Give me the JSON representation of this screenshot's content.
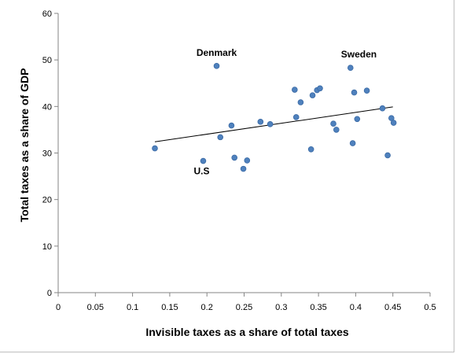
{
  "chart_data": {
    "type": "scatter",
    "title": "",
    "xlabel": "Invisible taxes as a share of total taxes",
    "ylabel": "Total taxes as a share of GDP",
    "xlim": [
      0,
      0.5
    ],
    "ylim": [
      0,
      60
    ],
    "xticks": [
      "0",
      "0.05",
      "0.1",
      "0.15",
      "0.2",
      "0.25",
      "0.3",
      "0.35",
      "0.4",
      "0.45",
      "0.5"
    ],
    "yticks": [
      "0",
      "10",
      "20",
      "30",
      "40",
      "50",
      "60"
    ],
    "grid": false,
    "legend": "none",
    "marker_color": "#4f81bd",
    "trendline": {
      "x": [
        0.13,
        0.45
      ],
      "y": [
        32.4,
        39.9
      ],
      "color": "#000000"
    },
    "points": [
      {
        "x": 0.13,
        "y": 31.0
      },
      {
        "x": 0.195,
        "y": 28.3
      },
      {
        "x": 0.213,
        "y": 48.7
      },
      {
        "x": 0.218,
        "y": 33.4
      },
      {
        "x": 0.233,
        "y": 35.9
      },
      {
        "x": 0.237,
        "y": 29.0
      },
      {
        "x": 0.249,
        "y": 26.6
      },
      {
        "x": 0.254,
        "y": 28.4
      },
      {
        "x": 0.272,
        "y": 36.7
      },
      {
        "x": 0.285,
        "y": 36.2
      },
      {
        "x": 0.318,
        "y": 43.6
      },
      {
        "x": 0.32,
        "y": 37.7
      },
      {
        "x": 0.326,
        "y": 40.9
      },
      {
        "x": 0.34,
        "y": 30.8
      },
      {
        "x": 0.342,
        "y": 42.4
      },
      {
        "x": 0.348,
        "y": 43.5
      },
      {
        "x": 0.352,
        "y": 43.9
      },
      {
        "x": 0.37,
        "y": 36.3
      },
      {
        "x": 0.374,
        "y": 35.0
      },
      {
        "x": 0.393,
        "y": 48.3
      },
      {
        "x": 0.396,
        "y": 32.1
      },
      {
        "x": 0.398,
        "y": 43.0
      },
      {
        "x": 0.402,
        "y": 37.3
      },
      {
        "x": 0.415,
        "y": 43.4
      },
      {
        "x": 0.436,
        "y": 39.6
      },
      {
        "x": 0.443,
        "y": 29.5
      },
      {
        "x": 0.448,
        "y": 37.5
      },
      {
        "x": 0.451,
        "y": 36.5
      }
    ],
    "annotations": [
      {
        "text": "Denmark",
        "x": 0.213,
        "y": 48.7
      },
      {
        "text": "Sweden",
        "x": 0.393,
        "y": 48.3
      },
      {
        "text": "U.S",
        "x": 0.195,
        "y": 28.3
      }
    ]
  }
}
